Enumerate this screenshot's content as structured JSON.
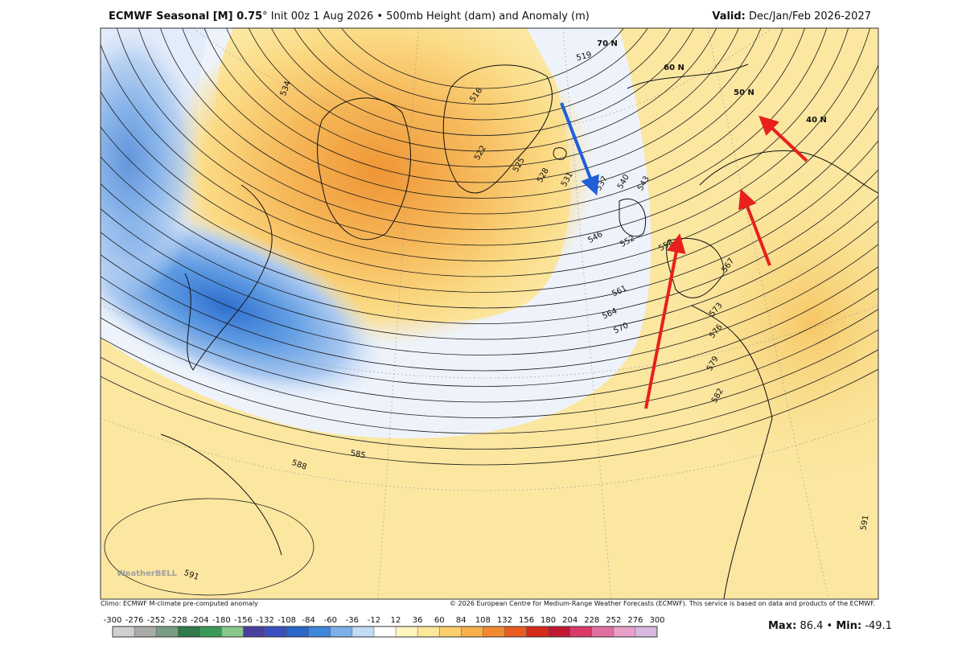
{
  "header": {
    "title_bold": "ECMWF Seasonal [M] 0.75",
    "degree": "°",
    "title_rest": "Init 00z 1 Aug 2026 • 500mb Height (dam) and Anomaly (m)",
    "valid_label": "Valid:",
    "valid_period": "Dec/Jan/Feb 2026-2027"
  },
  "map": {
    "contour_labels": [
      534,
      516,
      519,
      522,
      525,
      528,
      531,
      537,
      540,
      543,
      546,
      552,
      558,
      561,
      564,
      567,
      570,
      573,
      576,
      579,
      582,
      585,
      588,
      591,
      591
    ],
    "latitude_labels": [
      "70 N",
      "60 N",
      "50 N",
      "40 N"
    ],
    "watermark": "WeatherBELL"
  },
  "footer": {
    "climo_note": "Climo: ECMWF M-climate pre-computed anomaly",
    "copyright": "© 2026 European Centre for Medium-Range Weather Forecasts (ECMWF). This service is based on data and products of the ECMWF."
  },
  "colorbar": {
    "ticks": [
      -300,
      -276,
      -252,
      -228,
      -204,
      -180,
      -156,
      -132,
      -108,
      -84,
      -60,
      -36,
      -12,
      12,
      36,
      60,
      84,
      108,
      132,
      156,
      180,
      204,
      228,
      252,
      276,
      300
    ],
    "colors": [
      "#d0d0d0",
      "#a8aca9",
      "#7a9c84",
      "#2f7a4a",
      "#3c9a58",
      "#86c88a",
      "#4b3fa0",
      "#3a50c0",
      "#2a66c8",
      "#3f86dc",
      "#7db0ea",
      "#c2dcf6",
      "#ffffff",
      "#fff6c0",
      "#fde79a",
      "#fbcf6e",
      "#f7b04a",
      "#f28a30",
      "#e85c22",
      "#d42a18",
      "#c01830",
      "#d83a6a",
      "#e070a0",
      "#e8a0c8",
      "#d8b8e0"
    ]
  },
  "stats": {
    "max_label": "Max:",
    "max": 86.4,
    "separator": "•",
    "min_label": "Min:",
    "min": -49.1
  }
}
